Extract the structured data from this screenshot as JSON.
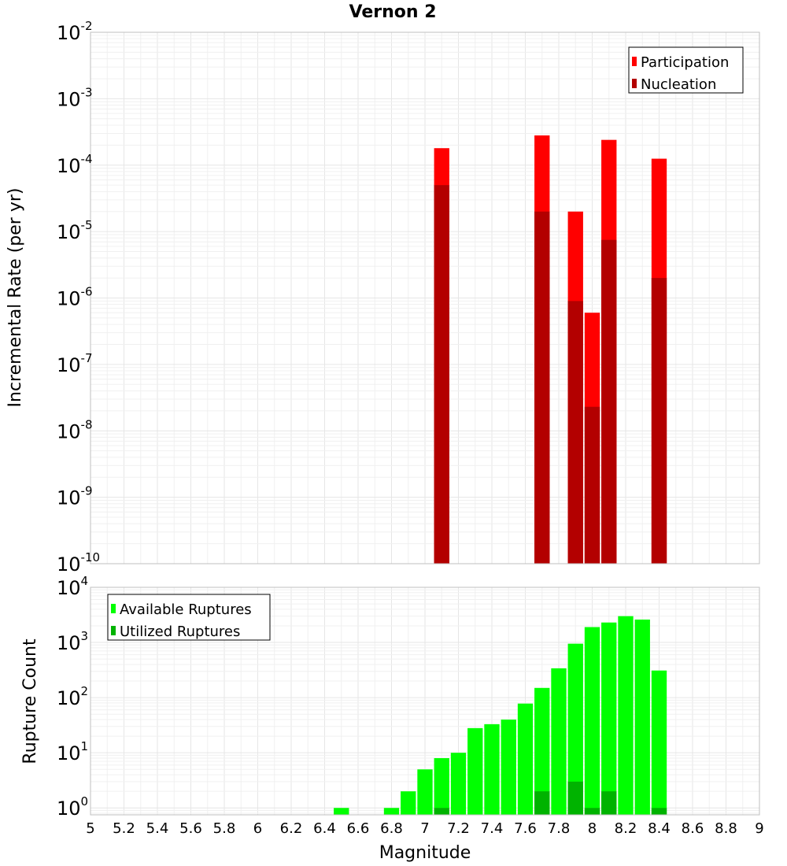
{
  "chart_data": [
    {
      "type": "bar",
      "title": "Vernon 2",
      "xlabel": "",
      "ylabel": "Incremental Rate (per yr)",
      "yscale": "log",
      "ylim": [
        1e-10,
        0.01
      ],
      "xlim": [
        5,
        9
      ],
      "grid": true,
      "legend_position": "top-right",
      "y_tick_labels": [
        "10^-10",
        "10^-9",
        "10^-8",
        "10^-7",
        "10^-6",
        "10^-5",
        "10^-4",
        "10^-3",
        "10^-2"
      ],
      "x": [
        7.1,
        7.7,
        7.9,
        8.0,
        8.1,
        8.4
      ],
      "series": [
        {
          "name": "Participation",
          "color": "#ff0000",
          "values": [
            0.00018,
            0.00028,
            2e-05,
            6e-07,
            0.00024,
            0.000125
          ]
        },
        {
          "name": "Nucleation",
          "color": "#b30000",
          "values": [
            5e-05,
            2e-05,
            9e-07,
            2.3e-08,
            7.5e-06,
            2e-06
          ]
        }
      ]
    },
    {
      "type": "bar",
      "title": "",
      "xlabel": "Magnitude",
      "ylabel": "Rupture Count",
      "yscale": "log",
      "ylim": [
        0.75,
        10000
      ],
      "xlim": [
        5,
        9
      ],
      "grid": true,
      "legend_position": "top-left",
      "y_tick_labels": [
        "10^0",
        "10^1",
        "10^2",
        "10^3",
        "10^4"
      ],
      "x_tick_labels": [
        "5",
        "5.2",
        "5.4",
        "5.6",
        "5.8",
        "6",
        "6.2",
        "6.4",
        "6.6",
        "6.8",
        "7",
        "7.2",
        "7.4",
        "7.6",
        "7.8",
        "8",
        "8.2",
        "8.4",
        "8.6",
        "8.8",
        "9"
      ],
      "x": [
        6.5,
        6.8,
        6.9,
        7.0,
        7.1,
        7.2,
        7.3,
        7.4,
        7.5,
        7.6,
        7.7,
        7.8,
        7.9,
        8.0,
        8.1,
        8.2,
        8.3,
        8.4
      ],
      "series": [
        {
          "name": "Available Ruptures",
          "color": "#00ff00",
          "values": [
            1,
            1,
            2,
            5,
            8,
            10,
            28,
            33,
            40,
            78,
            150,
            340,
            950,
            1900,
            2300,
            3000,
            2600,
            310
          ]
        },
        {
          "name": "Utilized Ruptures",
          "color": "#00b300",
          "values": [
            0,
            0,
            0,
            0,
            1,
            0,
            0,
            0,
            0,
            0,
            2,
            0,
            3,
            1,
            2,
            0,
            0,
            1
          ]
        }
      ]
    }
  ]
}
